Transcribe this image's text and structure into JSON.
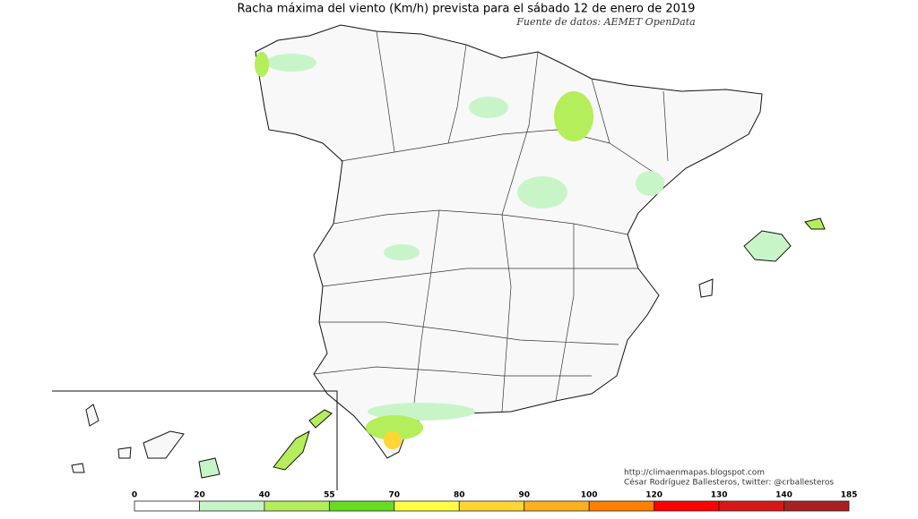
{
  "header": {
    "title": "Racha máxima del viento (Km/h) prevista para el sábado 12 de enero de 2019",
    "subtitle": "Fuente de datos: AEMET OpenData"
  },
  "credits": [
    "http://climaenmapas.blogspot.com",
    "César Rodríguez Ballesteros, twitter: @crballesteros"
  ],
  "legend": {
    "ticks": [
      0,
      20,
      40,
      55,
      70,
      80,
      90,
      100,
      120,
      130,
      140,
      185
    ],
    "colors": [
      "#ffffff",
      "#c8f5c8",
      "#b4ee5a",
      "#66dd22",
      "#ffff44",
      "#ffd633",
      "#ffb020",
      "#ff8000",
      "#ff0000",
      "#d81818",
      "#a82020"
    ]
  }
}
